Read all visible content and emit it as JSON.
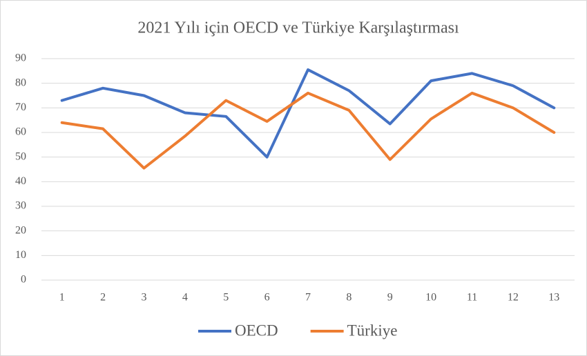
{
  "chart_data": {
    "type": "line",
    "title": "2021 Yılı için OECD ve Türkiye Karşılaştırması",
    "categories": [
      "1",
      "2",
      "3",
      "4",
      "5",
      "6",
      "7",
      "8",
      "9",
      "10",
      "11",
      "12",
      "13"
    ],
    "series": [
      {
        "name": "OECD",
        "color": "#4472c4",
        "values": [
          73,
          78,
          75,
          68,
          66.5,
          50,
          85.5,
          77,
          63.5,
          81,
          84,
          79,
          70
        ]
      },
      {
        "name": "Türkiye",
        "color": "#ed7d31",
        "values": [
          64,
          61.5,
          45.5,
          58.5,
          73,
          64.5,
          76,
          69,
          49,
          65.5,
          76,
          70,
          60
        ]
      }
    ],
    "ylim": [
      0,
      90
    ],
    "yticks": [
      0,
      10,
      20,
      30,
      40,
      50,
      60,
      70,
      80,
      90
    ],
    "grid": true,
    "legend": "bottom"
  }
}
